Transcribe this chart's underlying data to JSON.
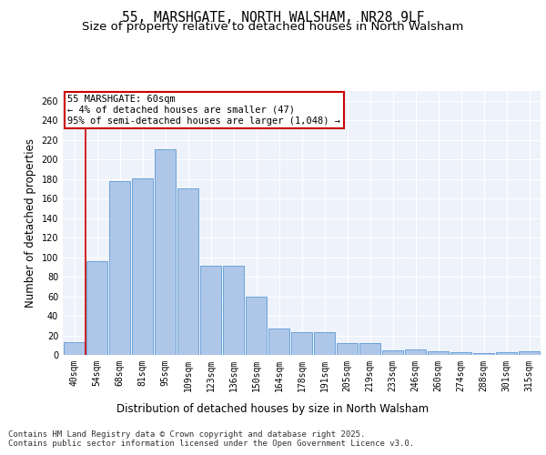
{
  "title_line1": "55, MARSHGATE, NORTH WALSHAM, NR28 9LF",
  "title_line2": "Size of property relative to detached houses in North Walsham",
  "xlabel": "Distribution of detached houses by size in North Walsham",
  "ylabel": "Number of detached properties",
  "categories": [
    "40sqm",
    "54sqm",
    "68sqm",
    "81sqm",
    "95sqm",
    "109sqm",
    "123sqm",
    "136sqm",
    "150sqm",
    "164sqm",
    "178sqm",
    "191sqm",
    "205sqm",
    "219sqm",
    "233sqm",
    "246sqm",
    "260sqm",
    "274sqm",
    "288sqm",
    "301sqm",
    "315sqm"
  ],
  "values": [
    13,
    96,
    178,
    181,
    210,
    170,
    91,
    91,
    60,
    27,
    23,
    23,
    12,
    12,
    5,
    6,
    4,
    3,
    2,
    3,
    4
  ],
  "bar_color": "#aec6e8",
  "bar_edge_color": "#5b9bd5",
  "vline_color": "#cc0000",
  "vline_x": 0.5,
  "annotation_text": "55 MARSHGATE: 60sqm\n← 4% of detached houses are smaller (47)\n95% of semi-detached houses are larger (1,048) →",
  "annotation_box_color": "#ffffff",
  "annotation_border_color": "#cc0000",
  "ylim": [
    0,
    270
  ],
  "yticks": [
    0,
    20,
    40,
    60,
    80,
    100,
    120,
    140,
    160,
    180,
    200,
    220,
    240,
    260
  ],
  "background_color": "#eef2fa",
  "grid_color": "#ffffff",
  "footer_text": "Contains HM Land Registry data © Crown copyright and database right 2025.\nContains public sector information licensed under the Open Government Licence v3.0.",
  "title_fontsize": 10.5,
  "subtitle_fontsize": 9.5,
  "axis_label_fontsize": 8.5,
  "tick_fontsize": 7,
  "footer_fontsize": 6.5,
  "annot_fontsize": 7.5
}
